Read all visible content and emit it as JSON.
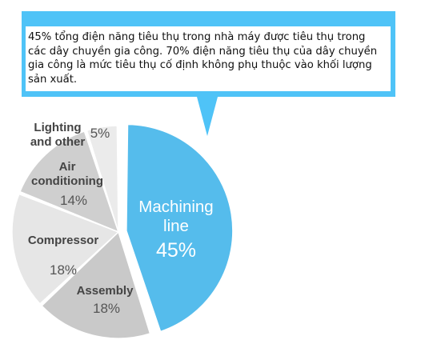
{
  "callout": {
    "text": "45% tổng điện năng tiêu thụ trong nhà máy được tiêu thụ trong các dây chuyền gia công. 70% điện năng tiêu thụ của dây chuyền gia công là mức tiêu thụ cố định không phụ thuộc vào khối lượng sản xuất.",
    "color": "#4fc3f7"
  },
  "chart_data": {
    "type": "pie",
    "title": "",
    "slices": [
      {
        "label_lines": [
          "Machining",
          "line"
        ],
        "value": 45,
        "value_text": "45%",
        "color": "#55bcec",
        "exploded": true
      },
      {
        "label_lines": [
          "Assembly"
        ],
        "value": 18,
        "value_text": "18%",
        "color": "#c9c9c9",
        "exploded": false
      },
      {
        "label_lines": [
          "Compressor"
        ],
        "value": 18,
        "value_text": "18%",
        "color": "#e6e6e6",
        "exploded": false
      },
      {
        "label_lines": [
          "Air",
          "conditioning"
        ],
        "value": 14,
        "value_text": "14%",
        "color": "#cfcfcf",
        "exploded": false
      },
      {
        "label_lines": [
          "Lighting",
          "and other"
        ],
        "value": 5,
        "value_text": "5%",
        "color": "#ebebeb",
        "exploded": false
      }
    ]
  }
}
